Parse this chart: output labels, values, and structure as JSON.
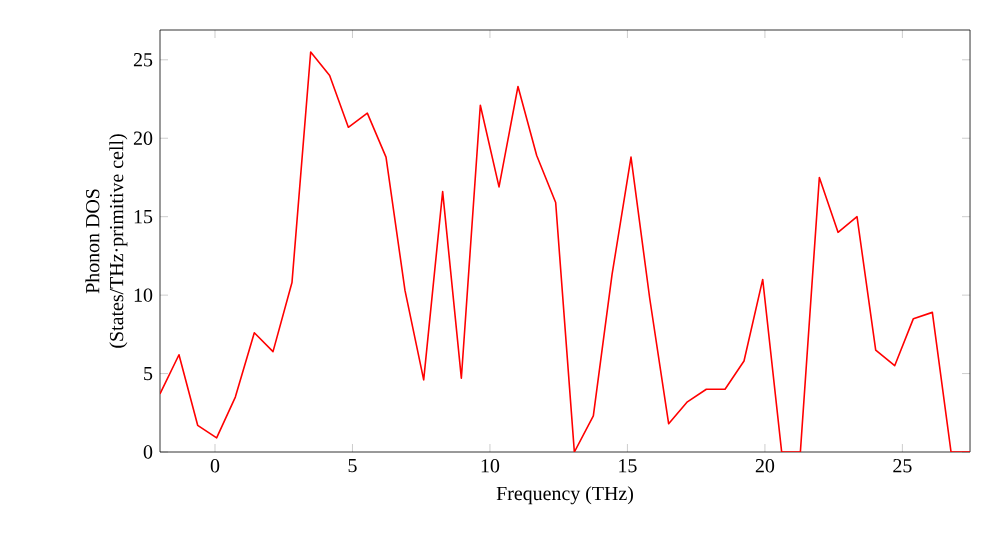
{
  "chart_data": {
    "type": "line",
    "xlabel": "Frequency (THz)",
    "ylabel": "Phonon DOS\n(States/THz·primitive cell)",
    "x": [
      -2.0,
      -1.31,
      -0.63,
      0.06,
      0.74,
      1.43,
      2.11,
      2.8,
      3.48,
      4.17,
      4.85,
      5.54,
      6.22,
      6.91,
      7.59,
      8.28,
      8.96,
      9.65,
      10.33,
      11.02,
      11.7,
      12.39,
      13.07,
      13.76,
      14.44,
      15.13,
      15.81,
      16.5,
      17.18,
      17.87,
      18.55,
      19.24,
      19.92,
      20.61,
      21.29,
      21.98,
      22.66,
      23.35,
      24.03,
      24.72,
      25.4,
      26.09,
      26.77,
      27.46
    ],
    "series": [
      {
        "color": "#ff0000",
        "values": [
          3.7,
          6.2,
          1.7,
          0.9,
          3.5,
          7.6,
          6.4,
          10.8,
          25.5,
          24,
          20.7,
          21.6,
          18.8,
          10.3,
          4.6,
          16.6,
          4.7,
          22.1,
          16.9,
          23.3,
          18.9,
          15.9,
          0,
          2.3,
          11.3,
          18.8,
          9.8,
          1.8,
          3.2,
          4,
          4,
          5.8,
          11,
          0,
          0,
          17.5,
          14,
          15,
          6.5,
          5.5,
          8.5,
          8.9,
          0,
          0
        ]
      }
    ],
    "xlim": [
      -2,
      27.46
    ],
    "ylim": [
      0,
      26.9
    ],
    "xticks": [
      0,
      5,
      10,
      15,
      20,
      25
    ],
    "yticks": [
      0,
      5,
      10,
      15,
      20,
      25
    ],
    "grid": false,
    "legend": false,
    "marker": "none",
    "line_style": "solid"
  }
}
